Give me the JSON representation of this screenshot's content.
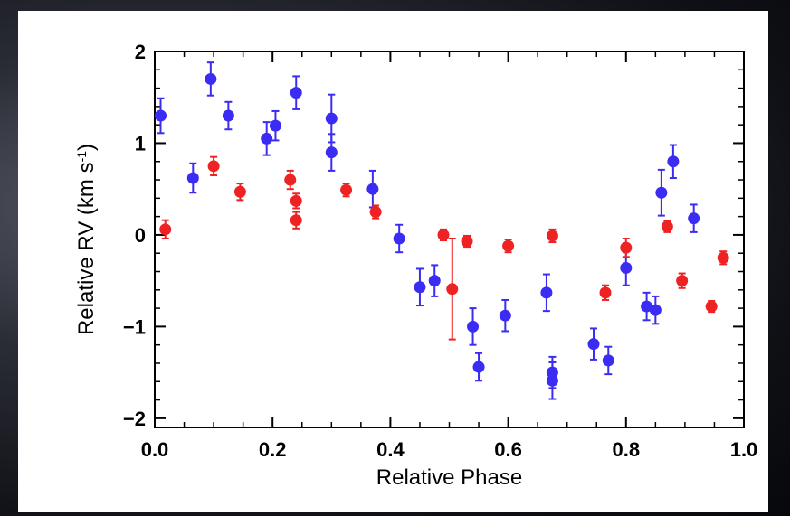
{
  "chart_data": {
    "type": "scatter",
    "xlabel": "Relative Phase",
    "ylabel_main": "Relative RV (km s",
    "ylabel_sup": "-1",
    "ylabel_close": ")",
    "xlim": [
      0.0,
      1.0
    ],
    "ylim": [
      -2.1,
      2.0
    ],
    "x_ticks": [
      0.0,
      0.2,
      0.4,
      0.6,
      0.8,
      1.0
    ],
    "x_tick_labels": [
      "0.0",
      "0.2",
      "0.4",
      "0.6",
      "0.8",
      "1.0"
    ],
    "y_ticks": [
      -2,
      -1,
      0,
      1,
      2
    ],
    "y_tick_labels": [
      "−2",
      "−1",
      "0",
      "1",
      "2"
    ],
    "grid": false,
    "legend": "none",
    "series": [
      {
        "color": "#3a2cf2",
        "points": [
          {
            "x": 0.01,
            "y": 1.3,
            "err": 0.19
          },
          {
            "x": 0.065,
            "y": 0.62,
            "err": 0.16
          },
          {
            "x": 0.095,
            "y": 1.7,
            "err": 0.18
          },
          {
            "x": 0.125,
            "y": 1.3,
            "err": 0.15
          },
          {
            "x": 0.19,
            "y": 1.05,
            "err": 0.18
          },
          {
            "x": 0.205,
            "y": 1.19,
            "err": 0.16
          },
          {
            "x": 0.24,
            "y": 1.55,
            "err": 0.18
          },
          {
            "x": 0.3,
            "y": 1.27,
            "err": 0.26
          },
          {
            "x": 0.3,
            "y": 0.9,
            "err": 0.2
          },
          {
            "x": 0.37,
            "y": 0.5,
            "err": 0.2
          },
          {
            "x": 0.415,
            "y": -0.04,
            "err": 0.15
          },
          {
            "x": 0.45,
            "y": -0.57,
            "err": 0.2
          },
          {
            "x": 0.475,
            "y": -0.5,
            "err": 0.17
          },
          {
            "x": 0.54,
            "y": -1.0,
            "err": 0.2
          },
          {
            "x": 0.55,
            "y": -1.44,
            "err": 0.15
          },
          {
            "x": 0.595,
            "y": -0.88,
            "err": 0.17
          },
          {
            "x": 0.665,
            "y": -0.63,
            "err": 0.2
          },
          {
            "x": 0.675,
            "y": -1.5,
            "err": 0.17
          },
          {
            "x": 0.675,
            "y": -1.59,
            "err": 0.2
          },
          {
            "x": 0.745,
            "y": -1.19,
            "err": 0.17
          },
          {
            "x": 0.77,
            "y": -1.37,
            "err": 0.15
          },
          {
            "x": 0.8,
            "y": -0.36,
            "err": 0.19
          },
          {
            "x": 0.835,
            "y": -0.78,
            "err": 0.15
          },
          {
            "x": 0.85,
            "y": -0.82,
            "err": 0.15
          },
          {
            "x": 0.86,
            "y": 0.46,
            "err": 0.25
          },
          {
            "x": 0.88,
            "y": 0.8,
            "err": 0.18
          },
          {
            "x": 0.915,
            "y": 0.18,
            "err": 0.15
          }
        ]
      },
      {
        "color": "#ee2222",
        "points": [
          {
            "x": 0.018,
            "y": 0.06,
            "err": 0.1
          },
          {
            "x": 0.1,
            "y": 0.75,
            "err": 0.1
          },
          {
            "x": 0.145,
            "y": 0.47,
            "err": 0.09
          },
          {
            "x": 0.23,
            "y": 0.6,
            "err": 0.1
          },
          {
            "x": 0.24,
            "y": 0.37,
            "err": 0.08
          },
          {
            "x": 0.24,
            "y": 0.16,
            "err": 0.09
          },
          {
            "x": 0.325,
            "y": 0.49,
            "err": 0.07
          },
          {
            "x": 0.375,
            "y": 0.25,
            "err": 0.07
          },
          {
            "x": 0.49,
            "y": 0.0,
            "err": 0.06
          },
          {
            "x": 0.505,
            "y": -0.59,
            "err": 0.55
          },
          {
            "x": 0.53,
            "y": -0.07,
            "err": 0.06
          },
          {
            "x": 0.6,
            "y": -0.12,
            "err": 0.07
          },
          {
            "x": 0.675,
            "y": -0.01,
            "err": 0.07
          },
          {
            "x": 0.765,
            "y": -0.63,
            "err": 0.08
          },
          {
            "x": 0.8,
            "y": -0.14,
            "err": 0.1
          },
          {
            "x": 0.87,
            "y": 0.09,
            "err": 0.06
          },
          {
            "x": 0.895,
            "y": -0.5,
            "err": 0.08
          },
          {
            "x": 0.945,
            "y": -0.78,
            "err": 0.06
          },
          {
            "x": 0.965,
            "y": -0.25,
            "err": 0.07
          }
        ]
      }
    ]
  }
}
